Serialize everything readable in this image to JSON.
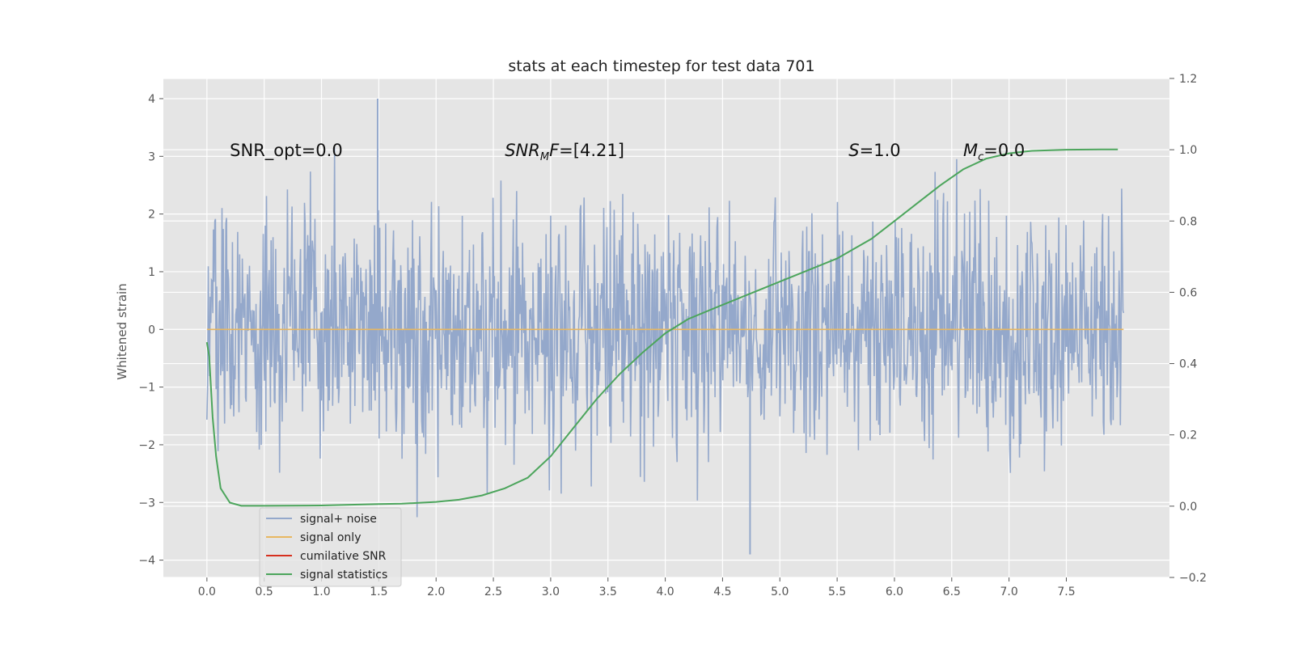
{
  "chart_data": {
    "type": "line",
    "title": "stats at each timestep for test data 701",
    "ylabel": "Whitened strain",
    "xlabel": "",
    "xlim": [
      -0.38,
      8.4
    ],
    "ylim": [
      -4.3,
      4.35
    ],
    "y2lim": [
      -0.2,
      1.2
    ],
    "x_ticks": [
      0.0,
      0.5,
      1.0,
      1.5,
      2.0,
      2.5,
      3.0,
      3.5,
      4.0,
      4.5,
      5.0,
      5.5,
      6.0,
      6.5,
      7.0,
      7.5
    ],
    "x_tick_labels": [
      "0.0",
      "0.5",
      "1.0",
      "1.5",
      "2.0",
      "2.5",
      "3.0",
      "3.5",
      "4.0",
      "4.5",
      "5.0",
      "5.5",
      "6.0",
      "6.5",
      "7.0",
      "7.5"
    ],
    "y_ticks": [
      -4,
      -3,
      -2,
      -1,
      0,
      1,
      2,
      3,
      4
    ],
    "y_tick_labels": [
      "−4",
      "−3",
      "−2",
      "−1",
      "0",
      "1",
      "2",
      "3",
      "4"
    ],
    "y2_ticks": [
      -0.2,
      0.0,
      0.2,
      0.4,
      0.6,
      0.8,
      1.0,
      1.2
    ],
    "y2_tick_labels": [
      "−0.2",
      "0.0",
      "0.2",
      "0.4",
      "0.6",
      "0.8",
      "1.0",
      "1.2"
    ],
    "grid": true,
    "legend_position": "bottom-left",
    "series": [
      {
        "name": "signal+ noise",
        "axis": "left",
        "color": "#94a8cb",
        "description": "noise-dominated strain, roughly within ±3, spikes to about 4.0 near t=1.49 and about −3.9 near t=4.74",
        "x_range": [
          0.0,
          8.0
        ],
        "y_typical_range": [
          -2.5,
          2.5
        ],
        "y_extremes": [
          -3.9,
          4.0
        ]
      },
      {
        "name": "signal only",
        "axis": "left",
        "color": "#e7b761",
        "x": [
          0.0,
          8.0
        ],
        "y": [
          0.0,
          0.0
        ]
      },
      {
        "name": "cumilative SNR",
        "axis": "right",
        "color": "#d6301f",
        "x": [],
        "y": []
      },
      {
        "name": "signal statistics",
        "axis": "right",
        "color": "#4ca55c",
        "x": [
          0.0,
          0.02,
          0.05,
          0.08,
          0.12,
          0.2,
          0.3,
          0.5,
          1.0,
          1.5,
          1.7,
          2.0,
          2.2,
          2.4,
          2.6,
          2.8,
          3.0,
          3.2,
          3.4,
          3.6,
          3.8,
          4.0,
          4.2,
          4.5,
          5.0,
          5.5,
          5.8,
          6.0,
          6.2,
          6.4,
          6.6,
          6.8,
          7.0,
          7.2,
          7.5,
          7.8,
          7.95
        ],
        "y": [
          0.46,
          0.42,
          0.25,
          0.14,
          0.05,
          0.01,
          0.001,
          0.001,
          0.002,
          0.006,
          0.007,
          0.012,
          0.018,
          0.03,
          0.05,
          0.08,
          0.14,
          0.22,
          0.3,
          0.37,
          0.43,
          0.485,
          0.525,
          0.565,
          0.63,
          0.695,
          0.75,
          0.8,
          0.85,
          0.9,
          0.945,
          0.975,
          0.99,
          0.997,
          1.0,
          1.001,
          1.001
        ]
      }
    ],
    "annotations": [
      {
        "text": "SNR_opt=0.0",
        "x": 0.2,
        "y": 3.1
      },
      {
        "text": "SNR_MF=[4.21]",
        "x": 2.6,
        "y": 3.1
      },
      {
        "text": "S=1.0",
        "x": 5.6,
        "y": 3.1
      },
      {
        "text": "M_c=0.0",
        "x": 6.6,
        "y": 3.1
      }
    ]
  }
}
